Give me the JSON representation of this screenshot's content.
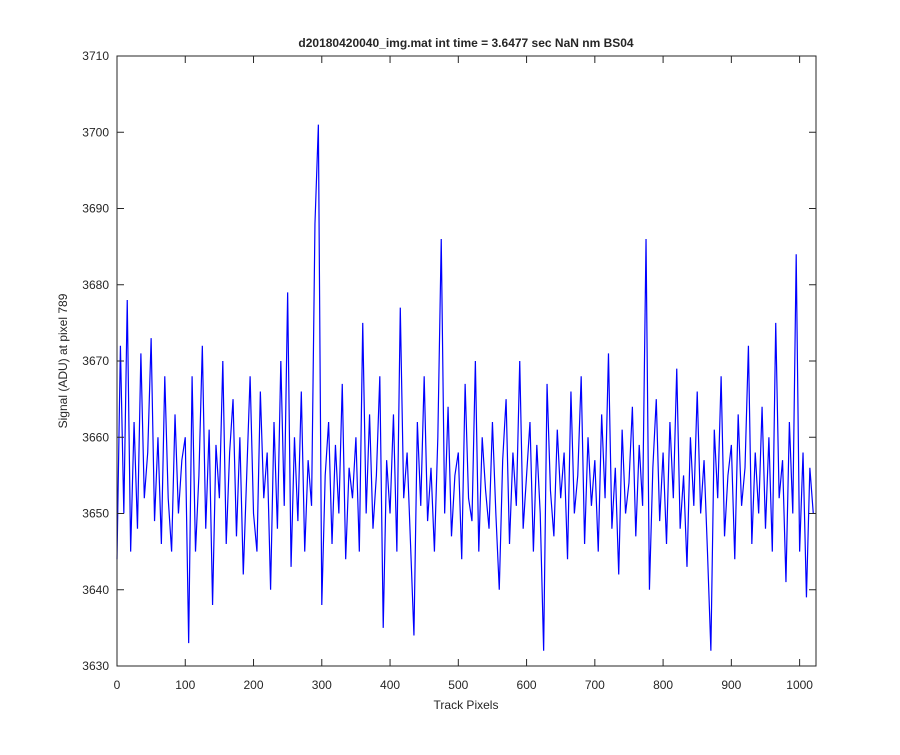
{
  "chart_data": {
    "type": "line",
    "title": "d20180420040_img.mat int time = 3.6477 sec  NaN nm BS04",
    "xlabel": "Track Pixels",
    "ylabel": "Signal (ADU) at pixel 789",
    "xlim": [
      0,
      1024
    ],
    "ylim": [
      3630,
      3710
    ],
    "xticks": [
      0,
      100,
      200,
      300,
      400,
      500,
      600,
      700,
      800,
      900,
      1000
    ],
    "yticks": [
      3630,
      3640,
      3650,
      3660,
      3670,
      3680,
      3690,
      3700,
      3710
    ],
    "x": [
      0,
      5,
      10,
      15,
      20,
      25,
      30,
      35,
      40,
      45,
      50,
      55,
      60,
      65,
      70,
      75,
      80,
      85,
      90,
      95,
      100,
      105,
      110,
      115,
      120,
      125,
      130,
      135,
      140,
      145,
      150,
      155,
      160,
      165,
      170,
      175,
      180,
      185,
      190,
      195,
      200,
      205,
      210,
      215,
      220,
      225,
      230,
      235,
      240,
      245,
      250,
      255,
      260,
      265,
      270,
      275,
      280,
      285,
      290,
      295,
      300,
      305,
      310,
      315,
      320,
      325,
      330,
      335,
      340,
      345,
      350,
      355,
      360,
      365,
      370,
      375,
      380,
      385,
      390,
      395,
      400,
      405,
      410,
      415,
      420,
      425,
      430,
      435,
      440,
      445,
      450,
      455,
      460,
      465,
      470,
      475,
      480,
      485,
      490,
      495,
      500,
      505,
      510,
      515,
      520,
      525,
      530,
      535,
      540,
      545,
      550,
      555,
      560,
      565,
      570,
      575,
      580,
      585,
      590,
      595,
      600,
      605,
      610,
      615,
      620,
      625,
      630,
      635,
      640,
      645,
      650,
      655,
      660,
      665,
      670,
      675,
      680,
      685,
      690,
      695,
      700,
      705,
      710,
      715,
      720,
      725,
      730,
      735,
      740,
      745,
      750,
      755,
      760,
      765,
      770,
      775,
      780,
      785,
      790,
      795,
      800,
      805,
      810,
      815,
      820,
      825,
      830,
      835,
      840,
      845,
      850,
      855,
      860,
      865,
      870,
      875,
      880,
      885,
      890,
      895,
      900,
      905,
      910,
      915,
      920,
      925,
      930,
      935,
      940,
      945,
      950,
      955,
      960,
      965,
      970,
      975,
      980,
      985,
      990,
      995,
      1000,
      1005,
      1010,
      1015,
      1020
    ],
    "series": [
      {
        "color": "#0000ff",
        "values": [
          3644,
          3672,
          3650,
          3678,
          3645,
          3662,
          3648,
          3671,
          3652,
          3658,
          3673,
          3649,
          3660,
          3646,
          3668,
          3652,
          3645,
          3663,
          3650,
          3657,
          3660,
          3633,
          3668,
          3645,
          3655,
          3672,
          3648,
          3661,
          3638,
          3659,
          3652,
          3670,
          3646,
          3658,
          3665,
          3647,
          3660,
          3642,
          3655,
          3668,
          3650,
          3645,
          3666,
          3652,
          3658,
          3640,
          3662,
          3648,
          3670,
          3651,
          3679,
          3643,
          3660,
          3649,
          3666,
          3645,
          3657,
          3651,
          3688,
          3701,
          3638,
          3655,
          3662,
          3646,
          3659,
          3650,
          3667,
          3644,
          3656,
          3652,
          3660,
          3645,
          3675,
          3650,
          3663,
          3648,
          3655,
          3668,
          3635,
          3657,
          3650,
          3663,
          3645,
          3677,
          3652,
          3658,
          3646,
          3634,
          3662,
          3651,
          3668,
          3649,
          3656,
          3645,
          3660,
          3686,
          3650,
          3664,
          3647,
          3655,
          3658,
          3644,
          3667,
          3652,
          3649,
          3670,
          3645,
          3660,
          3653,
          3648,
          3662,
          3650,
          3640,
          3657,
          3665,
          3646,
          3658,
          3651,
          3670,
          3648,
          3655,
          3662,
          3645,
          3659,
          3650,
          3632,
          3667,
          3653,
          3647,
          3661,
          3652,
          3658,
          3644,
          3666,
          3650,
          3655,
          3668,
          3646,
          3660,
          3651,
          3657,
          3645,
          3663,
          3652,
          3671,
          3648,
          3656,
          3642,
          3661,
          3650,
          3654,
          3664,
          3647,
          3659,
          3651,
          3686,
          3640,
          3656,
          3665,
          3649,
          3658,
          3646,
          3662,
          3652,
          3669,
          3648,
          3655,
          3643,
          3660,
          3651,
          3666,
          3650,
          3657,
          3645,
          3632,
          3661,
          3652,
          3668,
          3647,
          3655,
          3659,
          3644,
          3663,
          3651,
          3656,
          3672,
          3646,
          3658,
          3650,
          3664,
          3648,
          3660,
          3645,
          3675,
          3652,
          3657,
          3641,
          3662,
          3650,
          3684,
          3645,
          3658,
          3639,
          3656,
          3650
        ]
      }
    ]
  }
}
